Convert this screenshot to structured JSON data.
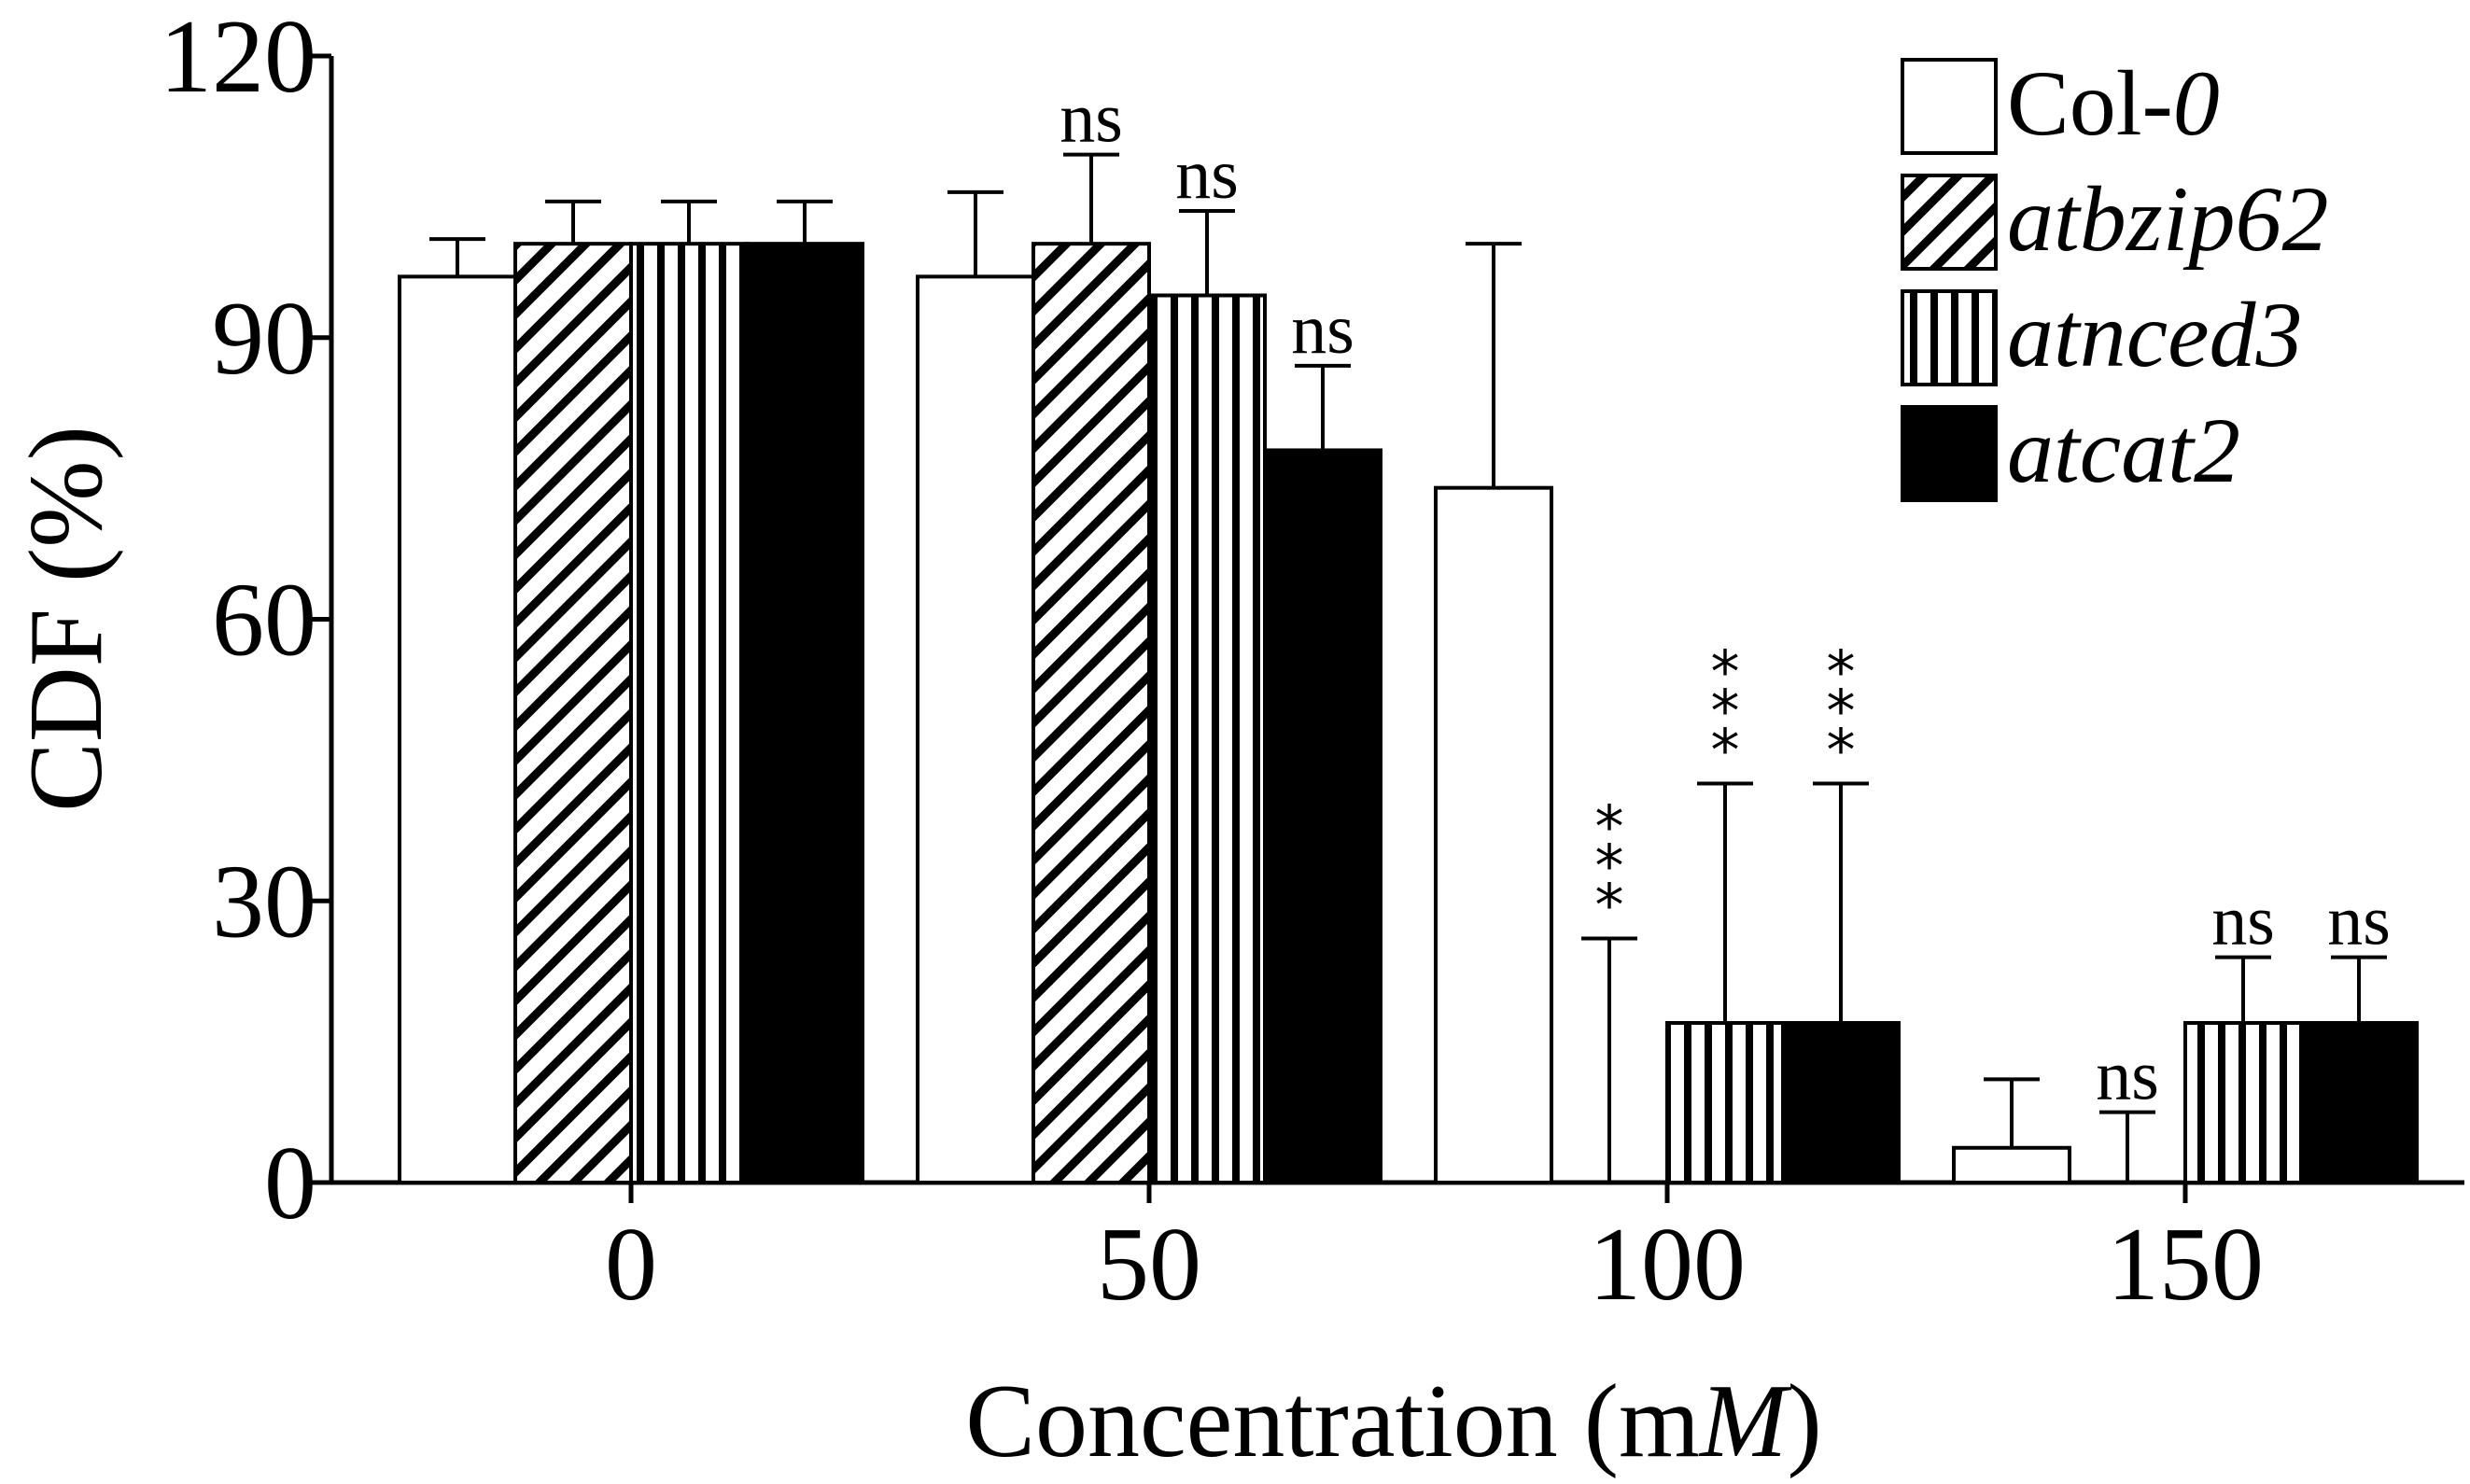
{
  "chart_data": {
    "type": "bar",
    "xlabel_prefix": "Concentration (m",
    "xlabel_italic": "M",
    "xlabel_suffix": ")",
    "ylabel": "CDF (%)",
    "categories": [
      "0",
      "50",
      "100",
      "150"
    ],
    "ylim": [
      0,
      120
    ],
    "yticks": [
      "0",
      "30",
      "60",
      "90",
      "120"
    ],
    "grid": false,
    "legend_position": "top-right",
    "series": [
      {
        "name_prefix": "Col-",
        "name_italic": "0",
        "pattern": "open",
        "values": [
          96.5,
          96.5,
          74,
          3.7
        ],
        "errors": [
          4,
          9,
          26,
          7.3
        ],
        "annotations": [
          "",
          "",
          "",
          ""
        ]
      },
      {
        "name_prefix": "",
        "name_italic": "atbzip62",
        "pattern": "diagonal",
        "values": [
          100,
          100,
          0,
          0
        ],
        "errors": [
          4.5,
          9.5,
          26,
          7.5
        ],
        "annotations": [
          "",
          "ns",
          "***",
          "ns"
        ]
      },
      {
        "name_prefix": "",
        "name_italic": "atnced3",
        "pattern": "vertical",
        "values": [
          100,
          94.5,
          17,
          17
        ],
        "errors": [
          4.5,
          9,
          25.5,
          7
        ],
        "annotations": [
          "",
          "ns",
          "***",
          "ns"
        ]
      },
      {
        "name_prefix": "",
        "name_italic": "atcat2",
        "pattern": "solid",
        "values": [
          100,
          78,
          17,
          17
        ],
        "errors": [
          4.5,
          9,
          25.5,
          7
        ],
        "annotations": [
          "",
          "ns",
          "***",
          "ns"
        ]
      }
    ]
  }
}
